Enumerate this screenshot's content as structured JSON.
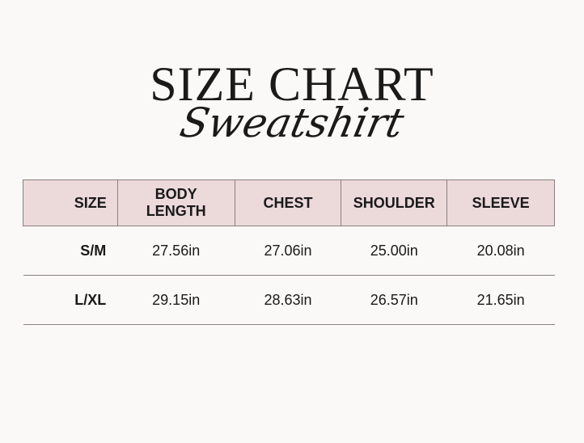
{
  "title": "SIZE CHART",
  "subtitle": "Sweatshirt",
  "colors": {
    "header_bg": "#ecd9da",
    "border": "#8a8082"
  },
  "table": {
    "headers": [
      "SIZE",
      "BODY LENGTH",
      "CHEST",
      "SHOULDER",
      "SLEEVE"
    ],
    "rows": [
      [
        "S/M",
        "27.56in",
        "27.06in",
        "25.00in",
        "20.08in"
      ],
      [
        "L/XL",
        "29.15in",
        "28.63in",
        "26.57in",
        "21.65in"
      ]
    ]
  }
}
